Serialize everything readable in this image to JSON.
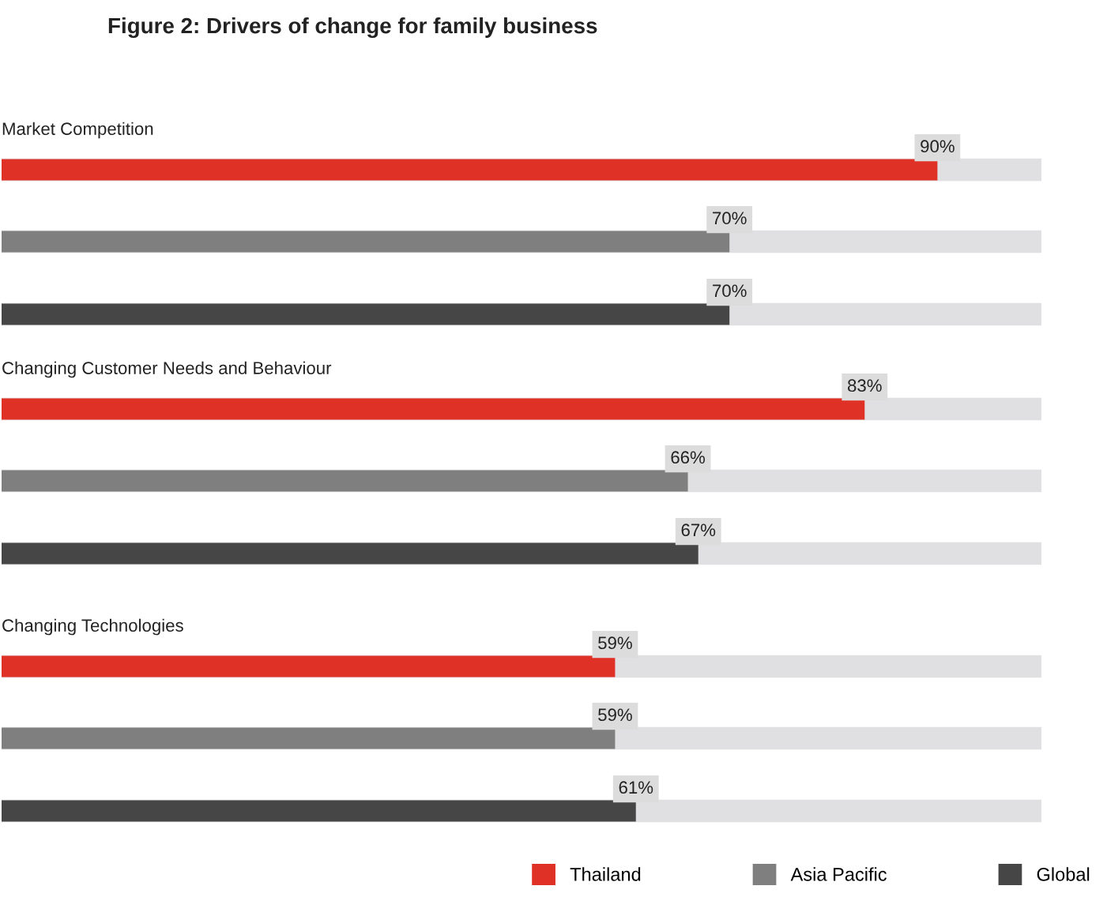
{
  "chart_data": {
    "type": "bar",
    "orientation": "horizontal",
    "title": "Figure 2: Drivers of change for family business",
    "categories": [
      "Market Competition",
      "Changing Customer Needs and Behaviour",
      "Changing Technologies"
    ],
    "series": [
      {
        "name": "Thailand",
        "color": "#e03127",
        "values": [
          90,
          83,
          59
        ],
        "value_labels": [
          "90%",
          "83%",
          "59%"
        ]
      },
      {
        "name": "Asia Pacific",
        "color": "#7f7f7f",
        "values": [
          70,
          66,
          59
        ],
        "value_labels": [
          "70%",
          "66%",
          "59%"
        ]
      },
      {
        "name": "Global",
        "color": "#464646",
        "values": [
          70,
          67,
          61
        ],
        "value_labels": [
          "70%",
          "67%",
          "61%"
        ]
      }
    ],
    "xlim": [
      0,
      100
    ],
    "legend": "bottom"
  }
}
